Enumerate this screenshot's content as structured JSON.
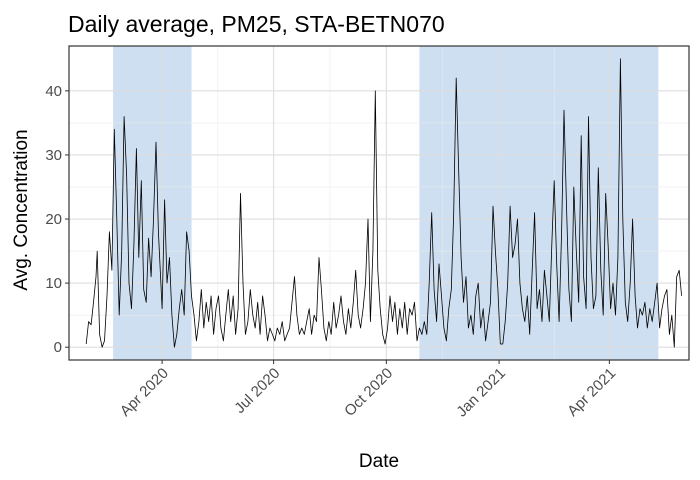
{
  "chart_data": {
    "type": "line",
    "title": "Daily average, PM25, STA-BETN070",
    "xlabel": "Date",
    "ylabel": "Avg. Concentration",
    "x_axis": {
      "scale": "date",
      "range": [
        "2020-01-16",
        "2021-06-05"
      ],
      "ticks": [
        {
          "date": "2020-04-01",
          "label": "Apr 2020"
        },
        {
          "date": "2020-07-01",
          "label": "Jul 2020"
        },
        {
          "date": "2020-10-01",
          "label": "Oct 2020"
        },
        {
          "date": "2021-01-01",
          "label": "Jan 2021"
        },
        {
          "date": "2021-04-01",
          "label": "Apr 2021"
        }
      ]
    },
    "y_axis": {
      "range": [
        -2,
        47
      ],
      "ticks": [
        0,
        10,
        20,
        30,
        40
      ]
    },
    "grid": true,
    "shaded_periods": [
      {
        "start": "2020-02-21",
        "end": "2020-04-25",
        "color": "#cddff0"
      },
      {
        "start": "2020-10-28",
        "end": "2021-05-11",
        "color": "#cddff0"
      }
    ],
    "line_color": "#000000",
    "series": [
      {
        "points": [
          [
            "2020-01-30",
            0.5
          ],
          [
            "2020-02-01",
            4
          ],
          [
            "2020-02-03",
            3.5
          ],
          [
            "2020-02-05",
            7
          ],
          [
            "2020-02-07",
            11
          ],
          [
            "2020-02-08",
            15
          ],
          [
            "2020-02-10",
            2
          ],
          [
            "2020-02-12",
            0
          ],
          [
            "2020-02-14",
            1
          ],
          [
            "2020-02-16",
            8
          ],
          [
            "2020-02-18",
            18
          ],
          [
            "2020-02-20",
            12
          ],
          [
            "2020-02-22",
            34
          ],
          [
            "2020-02-24",
            20
          ],
          [
            "2020-02-26",
            5
          ],
          [
            "2020-02-28",
            15
          ],
          [
            "2020-03-01",
            36
          ],
          [
            "2020-03-03",
            27
          ],
          [
            "2020-03-05",
            10
          ],
          [
            "2020-03-07",
            6
          ],
          [
            "2020-03-09",
            16
          ],
          [
            "2020-03-11",
            31
          ],
          [
            "2020-03-13",
            14
          ],
          [
            "2020-03-15",
            26
          ],
          [
            "2020-03-17",
            9
          ],
          [
            "2020-03-19",
            7
          ],
          [
            "2020-03-21",
            17
          ],
          [
            "2020-03-23",
            11
          ],
          [
            "2020-03-25",
            20
          ],
          [
            "2020-03-27",
            32
          ],
          [
            "2020-03-29",
            18
          ],
          [
            "2020-04-01",
            6
          ],
          [
            "2020-04-03",
            23
          ],
          [
            "2020-04-05",
            10
          ],
          [
            "2020-04-07",
            14
          ],
          [
            "2020-04-09",
            5
          ],
          [
            "2020-04-11",
            0
          ],
          [
            "2020-04-13",
            2
          ],
          [
            "2020-04-15",
            6
          ],
          [
            "2020-04-17",
            9
          ],
          [
            "2020-04-19",
            5
          ],
          [
            "2020-04-21",
            18
          ],
          [
            "2020-04-23",
            15
          ],
          [
            "2020-04-25",
            8
          ],
          [
            "2020-04-27",
            5
          ],
          [
            "2020-04-29",
            1
          ],
          [
            "2020-05-01",
            4
          ],
          [
            "2020-05-03",
            9
          ],
          [
            "2020-05-05",
            3
          ],
          [
            "2020-05-07",
            7
          ],
          [
            "2020-05-09",
            4
          ],
          [
            "2020-05-11",
            8
          ],
          [
            "2020-05-13",
            2
          ],
          [
            "2020-05-15",
            6
          ],
          [
            "2020-05-17",
            8
          ],
          [
            "2020-05-19",
            3
          ],
          [
            "2020-05-21",
            1
          ],
          [
            "2020-05-23",
            5
          ],
          [
            "2020-05-25",
            9
          ],
          [
            "2020-05-27",
            4
          ],
          [
            "2020-05-29",
            8
          ],
          [
            "2020-05-31",
            2
          ],
          [
            "2020-06-02",
            6
          ],
          [
            "2020-06-04",
            24
          ],
          [
            "2020-06-06",
            10
          ],
          [
            "2020-06-08",
            2
          ],
          [
            "2020-06-10",
            4
          ],
          [
            "2020-06-12",
            9
          ],
          [
            "2020-06-14",
            5
          ],
          [
            "2020-06-16",
            3
          ],
          [
            "2020-06-18",
            7
          ],
          [
            "2020-06-20",
            2
          ],
          [
            "2020-06-22",
            8
          ],
          [
            "2020-06-24",
            5
          ],
          [
            "2020-06-26",
            1
          ],
          [
            "2020-06-28",
            3
          ],
          [
            "2020-06-30",
            2
          ],
          [
            "2020-07-02",
            1
          ],
          [
            "2020-07-04",
            3
          ],
          [
            "2020-07-06",
            2
          ],
          [
            "2020-07-08",
            4
          ],
          [
            "2020-07-10",
            1
          ],
          [
            "2020-07-12",
            2
          ],
          [
            "2020-07-14",
            3
          ],
          [
            "2020-07-16",
            7
          ],
          [
            "2020-07-18",
            11
          ],
          [
            "2020-07-20",
            5
          ],
          [
            "2020-07-22",
            2
          ],
          [
            "2020-07-24",
            3
          ],
          [
            "2020-07-26",
            2
          ],
          [
            "2020-07-28",
            4
          ],
          [
            "2020-07-30",
            6
          ],
          [
            "2020-08-01",
            2
          ],
          [
            "2020-08-03",
            5
          ],
          [
            "2020-08-05",
            4
          ],
          [
            "2020-08-07",
            14
          ],
          [
            "2020-08-09",
            9
          ],
          [
            "2020-08-11",
            3
          ],
          [
            "2020-08-13",
            1
          ],
          [
            "2020-08-15",
            4
          ],
          [
            "2020-08-17",
            2
          ],
          [
            "2020-08-19",
            7
          ],
          [
            "2020-08-21",
            3
          ],
          [
            "2020-08-23",
            5
          ],
          [
            "2020-08-25",
            8
          ],
          [
            "2020-08-27",
            4
          ],
          [
            "2020-08-29",
            2
          ],
          [
            "2020-08-31",
            6
          ],
          [
            "2020-09-02",
            3
          ],
          [
            "2020-09-04",
            7
          ],
          [
            "2020-09-06",
            12
          ],
          [
            "2020-09-08",
            5
          ],
          [
            "2020-09-10",
            3
          ],
          [
            "2020-09-12",
            6
          ],
          [
            "2020-09-14",
            10
          ],
          [
            "2020-09-16",
            20
          ],
          [
            "2020-09-18",
            4
          ],
          [
            "2020-09-20",
            15
          ],
          [
            "2020-09-22",
            40
          ],
          [
            "2020-09-24",
            12
          ],
          [
            "2020-09-26",
            6
          ],
          [
            "2020-09-28",
            2
          ],
          [
            "2020-09-30",
            0.5
          ],
          [
            "2020-10-02",
            3
          ],
          [
            "2020-10-04",
            8
          ],
          [
            "2020-10-06",
            4
          ],
          [
            "2020-10-08",
            7
          ],
          [
            "2020-10-10",
            2
          ],
          [
            "2020-10-12",
            6
          ],
          [
            "2020-10-14",
            3
          ],
          [
            "2020-10-16",
            7
          ],
          [
            "2020-10-18",
            2
          ],
          [
            "2020-10-20",
            6
          ],
          [
            "2020-10-22",
            5
          ],
          [
            "2020-10-24",
            7
          ],
          [
            "2020-10-26",
            1
          ],
          [
            "2020-10-28",
            3
          ],
          [
            "2020-10-30",
            2
          ],
          [
            "2020-11-01",
            4
          ],
          [
            "2020-11-03",
            2
          ],
          [
            "2020-11-05",
            10
          ],
          [
            "2020-11-07",
            21
          ],
          [
            "2020-11-09",
            9
          ],
          [
            "2020-11-11",
            4
          ],
          [
            "2020-11-13",
            13
          ],
          [
            "2020-11-15",
            8
          ],
          [
            "2020-11-17",
            3
          ],
          [
            "2020-11-19",
            1
          ],
          [
            "2020-11-21",
            6
          ],
          [
            "2020-11-23",
            9
          ],
          [
            "2020-11-25",
            21
          ],
          [
            "2020-11-27",
            42
          ],
          [
            "2020-11-29",
            28
          ],
          [
            "2020-12-01",
            14
          ],
          [
            "2020-12-03",
            7
          ],
          [
            "2020-12-05",
            11
          ],
          [
            "2020-12-07",
            3
          ],
          [
            "2020-12-09",
            5
          ],
          [
            "2020-12-11",
            2
          ],
          [
            "2020-12-13",
            8
          ],
          [
            "2020-12-15",
            10
          ],
          [
            "2020-12-17",
            3
          ],
          [
            "2020-12-19",
            6
          ],
          [
            "2020-12-21",
            1
          ],
          [
            "2020-12-23",
            4
          ],
          [
            "2020-12-25",
            7
          ],
          [
            "2020-12-27",
            22
          ],
          [
            "2020-12-29",
            15
          ],
          [
            "2020-12-31",
            9
          ],
          [
            "2021-01-02",
            0.5
          ],
          [
            "2021-01-04",
            0.5
          ],
          [
            "2021-01-06",
            4
          ],
          [
            "2021-01-08",
            10
          ],
          [
            "2021-01-10",
            22
          ],
          [
            "2021-01-12",
            14
          ],
          [
            "2021-01-14",
            16
          ],
          [
            "2021-01-16",
            20
          ],
          [
            "2021-01-18",
            10
          ],
          [
            "2021-01-20",
            6
          ],
          [
            "2021-01-22",
            4
          ],
          [
            "2021-01-24",
            8
          ],
          [
            "2021-01-26",
            2
          ],
          [
            "2021-01-28",
            12
          ],
          [
            "2021-01-30",
            21
          ],
          [
            "2021-02-01",
            6
          ],
          [
            "2021-02-03",
            9
          ],
          [
            "2021-02-05",
            4
          ],
          [
            "2021-02-07",
            12
          ],
          [
            "2021-02-09",
            8
          ],
          [
            "2021-02-11",
            4
          ],
          [
            "2021-02-13",
            16
          ],
          [
            "2021-02-15",
            26
          ],
          [
            "2021-02-17",
            13
          ],
          [
            "2021-02-19",
            4
          ],
          [
            "2021-02-21",
            18
          ],
          [
            "2021-02-23",
            37
          ],
          [
            "2021-02-25",
            22
          ],
          [
            "2021-02-27",
            9
          ],
          [
            "2021-03-01",
            4
          ],
          [
            "2021-03-03",
            25
          ],
          [
            "2021-03-05",
            15
          ],
          [
            "2021-03-07",
            7
          ],
          [
            "2021-03-09",
            33
          ],
          [
            "2021-03-11",
            11
          ],
          [
            "2021-03-13",
            6
          ],
          [
            "2021-03-15",
            36
          ],
          [
            "2021-03-17",
            14
          ],
          [
            "2021-03-19",
            6
          ],
          [
            "2021-03-21",
            8
          ],
          [
            "2021-03-23",
            28
          ],
          [
            "2021-03-25",
            12
          ],
          [
            "2021-03-27",
            5
          ],
          [
            "2021-03-29",
            24
          ],
          [
            "2021-03-31",
            16
          ],
          [
            "2021-04-02",
            6
          ],
          [
            "2021-04-04",
            10
          ],
          [
            "2021-04-06",
            5
          ],
          [
            "2021-04-08",
            14
          ],
          [
            "2021-04-10",
            45
          ],
          [
            "2021-04-12",
            20
          ],
          [
            "2021-04-14",
            7
          ],
          [
            "2021-04-16",
            4
          ],
          [
            "2021-04-18",
            10
          ],
          [
            "2021-04-20",
            20
          ],
          [
            "2021-04-22",
            8
          ],
          [
            "2021-04-24",
            3
          ],
          [
            "2021-04-26",
            6
          ],
          [
            "2021-04-28",
            5
          ],
          [
            "2021-04-30",
            7
          ],
          [
            "2021-05-02",
            3
          ],
          [
            "2021-05-04",
            6
          ],
          [
            "2021-05-06",
            4
          ],
          [
            "2021-05-08",
            7
          ],
          [
            "2021-05-10",
            10
          ],
          [
            "2021-05-12",
            3
          ],
          [
            "2021-05-14",
            6
          ],
          [
            "2021-05-16",
            8
          ],
          [
            "2021-05-18",
            9
          ],
          [
            "2021-05-20",
            2
          ],
          [
            "2021-05-22",
            5
          ],
          [
            "2021-05-24",
            0
          ],
          [
            "2021-05-26",
            11
          ],
          [
            "2021-05-28",
            12
          ],
          [
            "2021-05-30",
            8
          ]
        ]
      }
    ]
  }
}
